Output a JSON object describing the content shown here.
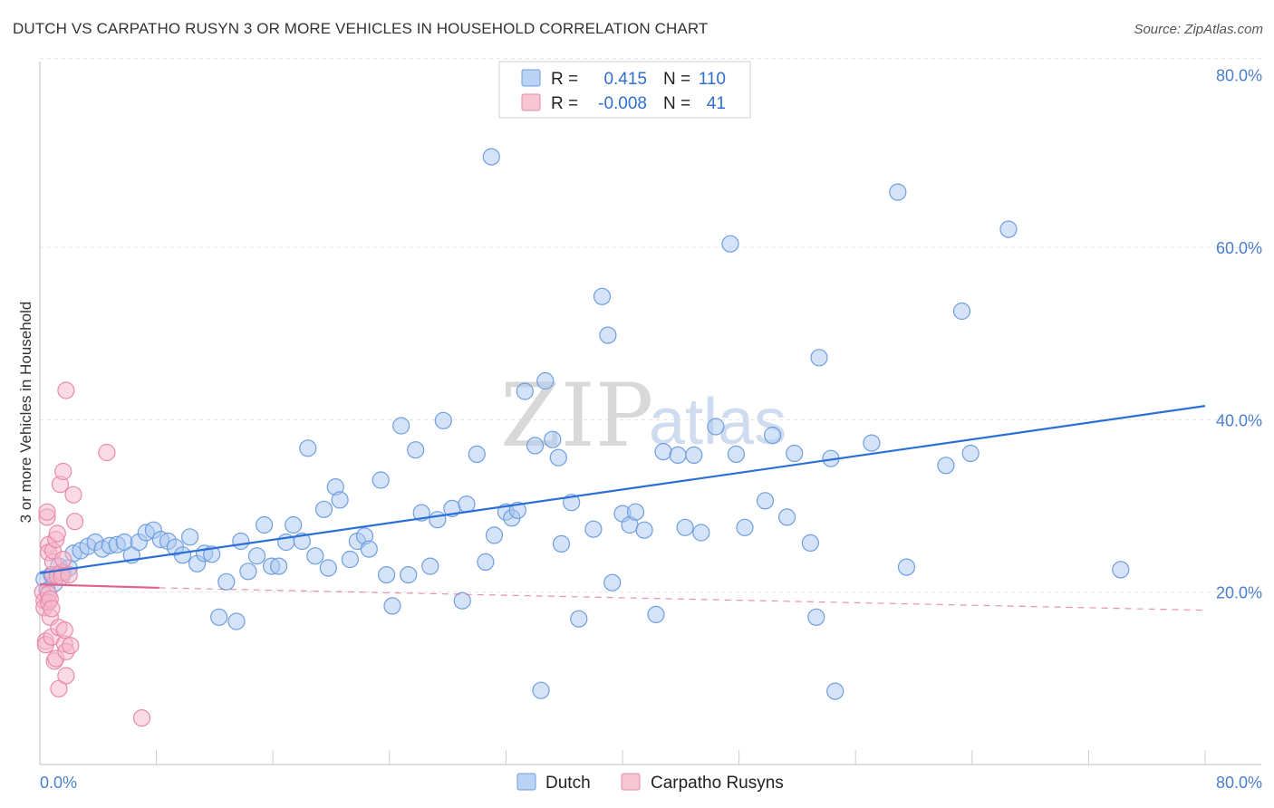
{
  "header": {
    "title": "DUTCH VS CARPATHO RUSYN 3 OR MORE VEHICLES IN HOUSEHOLD CORRELATION CHART",
    "source": "Source: ZipAtlas.com"
  },
  "watermark": {
    "zip": "ZIP",
    "atlas": "atlas"
  },
  "legend_box": {
    "rows": [
      {
        "r_label": "R =",
        "r_value": "0.415",
        "n_label": "N =",
        "n_value": "110",
        "color": "#a9c7f0"
      },
      {
        "r_label": "R =",
        "r_value": "-0.008",
        "n_label": "N =",
        "n_value": "41",
        "color": "#f5b8cb"
      }
    ]
  },
  "bottom_legend": [
    {
      "label": "Dutch",
      "color": "#a9c7f0"
    },
    {
      "label": "Carpatho Rusyns",
      "color": "#f5b8cb"
    }
  ],
  "chart_data": {
    "type": "scatter",
    "title": "DUTCH VS CARPATHO RUSYN 3 OR MORE VEHICLES IN HOUSEHOLD CORRELATION CHART",
    "xlabel": "",
    "ylabel": "3 or more Vehicles in Household",
    "xlim": [
      0,
      80
    ],
    "ylim": [
      0,
      82
    ],
    "x_tick_labels": [
      "0.0%",
      "80.0%"
    ],
    "y_ticks": [
      20,
      40,
      60,
      80
    ],
    "y_tick_labels": [
      "20.0%",
      "40.0%",
      "60.0%",
      "80.0%"
    ],
    "grid": true,
    "legend_position": "top-center",
    "series": [
      {
        "name": "Dutch",
        "color": "#a9c7f0",
        "stroke": "#6f9ee0",
        "trend": {
          "x": [
            0,
            80
          ],
          "y": [
            22.2,
            41.6
          ],
          "style": "solid",
          "color": "#2b6fd6"
        },
        "points": [
          [
            0.3,
            21.5
          ],
          [
            0.5,
            20.2
          ],
          [
            0.8,
            22.0
          ],
          [
            1.0,
            21.0
          ],
          [
            1.3,
            23.0
          ],
          [
            1.6,
            22.2
          ],
          [
            2.0,
            22.8
          ],
          [
            2.3,
            24.5
          ],
          [
            2.8,
            24.8
          ],
          [
            3.3,
            25.3
          ],
          [
            3.8,
            25.8
          ],
          [
            4.3,
            25.0
          ],
          [
            4.8,
            25.4
          ],
          [
            5.3,
            25.5
          ],
          [
            5.8,
            25.8
          ],
          [
            6.3,
            24.3
          ],
          [
            6.8,
            25.8
          ],
          [
            7.3,
            26.9
          ],
          [
            7.8,
            27.2
          ],
          [
            8.3,
            26.1
          ],
          [
            8.8,
            25.9
          ],
          [
            9.3,
            25.2
          ],
          [
            9.8,
            24.3
          ],
          [
            10.3,
            26.4
          ],
          [
            10.8,
            23.3
          ],
          [
            11.3,
            24.5
          ],
          [
            11.8,
            24.4
          ],
          [
            12.3,
            17.1
          ],
          [
            12.8,
            21.2
          ],
          [
            13.5,
            16.6
          ],
          [
            13.8,
            25.9
          ],
          [
            14.3,
            22.4
          ],
          [
            14.9,
            24.2
          ],
          [
            15.4,
            27.8
          ],
          [
            15.9,
            23.0
          ],
          [
            16.4,
            23.0
          ],
          [
            16.9,
            25.8
          ],
          [
            17.4,
            27.8
          ],
          [
            18.0,
            25.9
          ],
          [
            18.4,
            36.7
          ],
          [
            18.9,
            24.2
          ],
          [
            19.5,
            29.6
          ],
          [
            19.8,
            22.8
          ],
          [
            20.3,
            32.2
          ],
          [
            20.6,
            30.7
          ],
          [
            21.3,
            23.8
          ],
          [
            21.8,
            25.9
          ],
          [
            22.3,
            26.5
          ],
          [
            22.6,
            25.0
          ],
          [
            23.4,
            33.0
          ],
          [
            23.8,
            22.0
          ],
          [
            24.2,
            18.4
          ],
          [
            24.8,
            39.3
          ],
          [
            25.3,
            22.0
          ],
          [
            25.8,
            36.5
          ],
          [
            26.2,
            29.2
          ],
          [
            26.8,
            23.0
          ],
          [
            27.3,
            28.4
          ],
          [
            27.7,
            39.9
          ],
          [
            28.3,
            29.7
          ],
          [
            29.0,
            19.0
          ],
          [
            29.3,
            30.2
          ],
          [
            30.0,
            36.0
          ],
          [
            30.6,
            23.5
          ],
          [
            31.2,
            26.6
          ],
          [
            31.0,
            70.5
          ],
          [
            32.0,
            29.3
          ],
          [
            32.4,
            28.6
          ],
          [
            32.8,
            29.5
          ],
          [
            33.3,
            43.3
          ],
          [
            34.0,
            37.0
          ],
          [
            34.4,
            8.6
          ],
          [
            34.7,
            44.5
          ],
          [
            35.2,
            37.7
          ],
          [
            35.6,
            35.6
          ],
          [
            35.8,
            25.6
          ],
          [
            36.5,
            30.4
          ],
          [
            37.0,
            16.9
          ],
          [
            38.0,
            27.3
          ],
          [
            38.6,
            54.3
          ],
          [
            39.0,
            49.8
          ],
          [
            39.3,
            21.1
          ],
          [
            40.0,
            29.1
          ],
          [
            40.5,
            27.8
          ],
          [
            40.9,
            29.3
          ],
          [
            41.5,
            27.2
          ],
          [
            42.3,
            17.4
          ],
          [
            42.8,
            36.3
          ],
          [
            43.8,
            35.9
          ],
          [
            44.3,
            27.5
          ],
          [
            44.9,
            35.9
          ],
          [
            45.4,
            26.9
          ],
          [
            46.4,
            39.2
          ],
          [
            47.4,
            60.4
          ],
          [
            47.8,
            36.0
          ],
          [
            48.4,
            27.5
          ],
          [
            49.8,
            30.6
          ],
          [
            50.3,
            38.2
          ],
          [
            51.3,
            28.7
          ],
          [
            51.8,
            36.1
          ],
          [
            52.9,
            25.7
          ],
          [
            53.3,
            17.1
          ],
          [
            53.5,
            47.2
          ],
          [
            54.3,
            35.5
          ],
          [
            54.6,
            8.5
          ],
          [
            57.1,
            37.3
          ],
          [
            58.9,
            66.4
          ],
          [
            59.5,
            22.9
          ],
          [
            62.2,
            34.7
          ],
          [
            63.3,
            52.6
          ],
          [
            63.9,
            36.1
          ],
          [
            66.5,
            62.1
          ],
          [
            74.2,
            22.6
          ]
        ]
      },
      {
        "name": "Carpatho Rusyns",
        "color": "#f5b8cb",
        "stroke": "#e88aa8",
        "trend": {
          "x": [
            0,
            8.2
          ],
          "y": [
            20.9,
            20.5
          ],
          "style": "solid",
          "color": "#e0628d",
          "dashed_extension": {
            "x": [
              8.2,
              80
            ],
            "y": [
              20.5,
              17.9
            ]
          }
        },
        "points": [
          [
            0.2,
            20.0
          ],
          [
            0.3,
            19.0
          ],
          [
            0.3,
            18.2
          ],
          [
            0.4,
            14.3
          ],
          [
            0.4,
            13.9
          ],
          [
            0.5,
            28.7
          ],
          [
            0.5,
            29.3
          ],
          [
            0.6,
            25.5
          ],
          [
            0.6,
            24.6
          ],
          [
            0.6,
            19.8
          ],
          [
            0.6,
            18.8
          ],
          [
            0.7,
            17.1
          ],
          [
            0.7,
            19.2
          ],
          [
            0.8,
            18.1
          ],
          [
            0.8,
            14.8
          ],
          [
            0.9,
            22.0
          ],
          [
            0.9,
            23.5
          ],
          [
            0.9,
            24.8
          ],
          [
            1.0,
            12.0
          ],
          [
            1.1,
            12.3
          ],
          [
            1.1,
            26.1
          ],
          [
            1.2,
            26.8
          ],
          [
            1.2,
            21.9
          ],
          [
            1.3,
            15.9
          ],
          [
            1.3,
            8.8
          ],
          [
            1.4,
            32.5
          ],
          [
            1.5,
            22.3
          ],
          [
            1.5,
            21.8
          ],
          [
            1.6,
            34.0
          ],
          [
            1.6,
            23.8
          ],
          [
            1.7,
            14.0
          ],
          [
            1.7,
            15.6
          ],
          [
            1.8,
            10.3
          ],
          [
            1.8,
            13.1
          ],
          [
            1.8,
            43.4
          ],
          [
            2.0,
            22.0
          ],
          [
            2.1,
            13.8
          ],
          [
            2.3,
            31.3
          ],
          [
            2.4,
            28.2
          ],
          [
            4.6,
            36.2
          ],
          [
            7.0,
            5.4
          ]
        ]
      }
    ]
  }
}
